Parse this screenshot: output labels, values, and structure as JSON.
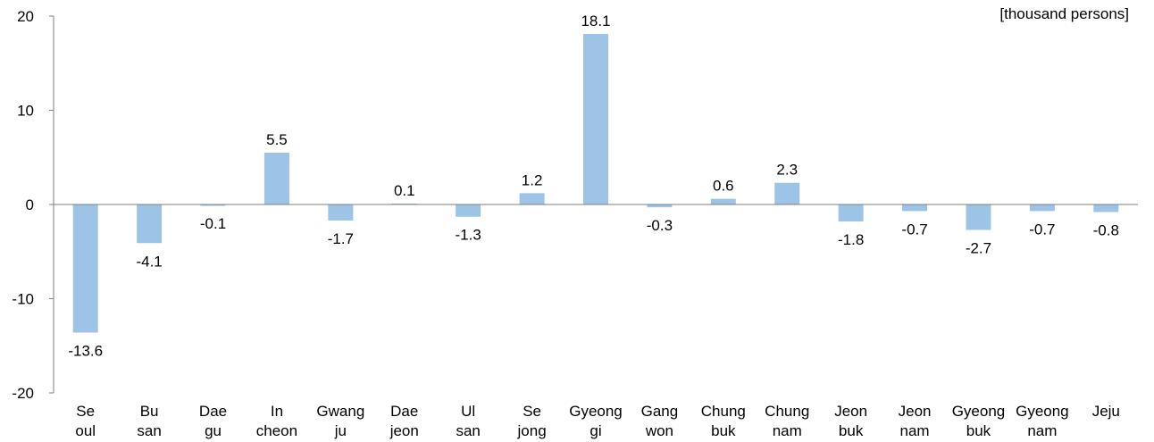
{
  "chart_data": {
    "type": "bar",
    "unit_label": "[thousand persons]",
    "categories": [
      [
        "Se",
        "oul"
      ],
      [
        "Bu",
        "san"
      ],
      [
        "Dae",
        "gu"
      ],
      [
        "In",
        "cheon"
      ],
      [
        "Gwang",
        "ju"
      ],
      [
        "Dae",
        "jeon"
      ],
      [
        "Ul",
        "san"
      ],
      [
        "Se",
        "jong"
      ],
      [
        "Gyeong",
        "gi"
      ],
      [
        "Gang",
        "won"
      ],
      [
        "Chung",
        "buk"
      ],
      [
        "Chung",
        "nam"
      ],
      [
        "Jeon",
        "buk"
      ],
      [
        "Jeon",
        "nam"
      ],
      [
        "Gyeong",
        "buk"
      ],
      [
        "Gyeong",
        "nam"
      ],
      [
        "Jeju"
      ]
    ],
    "values": [
      -13.6,
      -4.1,
      -0.1,
      5.5,
      -1.7,
      0.1,
      -1.3,
      1.2,
      18.1,
      -0.3,
      0.6,
      2.3,
      -1.8,
      -0.7,
      -2.7,
      -0.7,
      -0.8
    ],
    "value_labels": [
      "-13.6",
      "-4.1",
      "-0.1",
      "5.5",
      "-1.7",
      "0.1",
      "-1.3",
      "1.2",
      "18.1",
      "-0.3",
      "0.6",
      "2.3",
      "-1.8",
      "-0.7",
      "-2.7",
      "-0.7",
      "-0.8"
    ],
    "ylim": [
      -20,
      20
    ],
    "yticks": [
      -20,
      -10,
      0,
      10,
      20
    ],
    "ytick_labels": [
      "-20",
      "-10",
      "0",
      "10",
      "20"
    ],
    "grid": false,
    "legend": "none",
    "bar_color": "#9dc3e6"
  }
}
